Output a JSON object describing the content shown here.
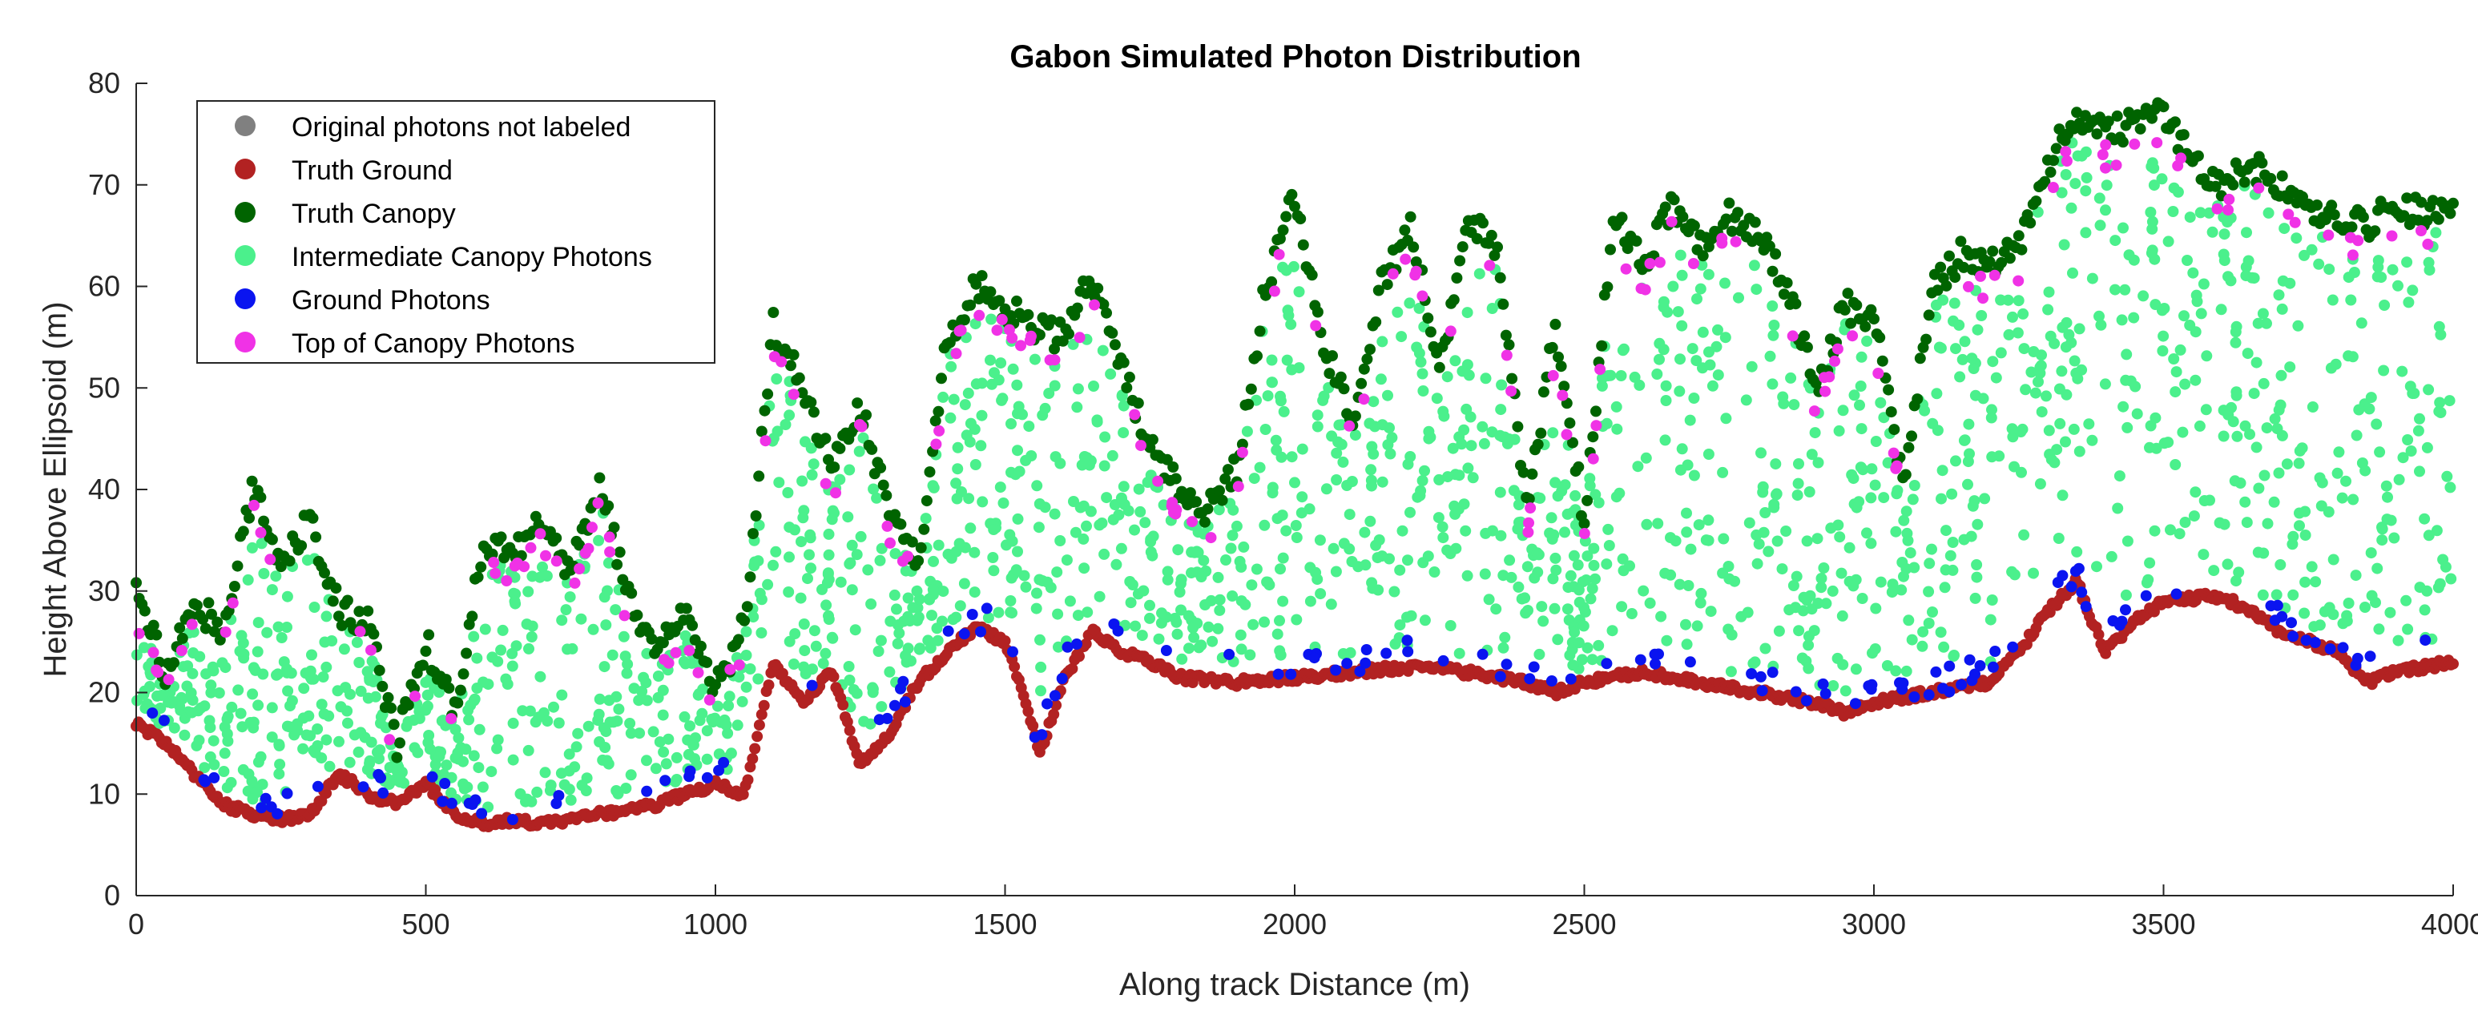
{
  "chart_data": {
    "type": "scatter",
    "title": "Gabon Simulated Photon Distribution",
    "xlabel": "Along track Distance (m)",
    "ylabel": "Height Above Ellipsoid (m)",
    "xlim": [
      0,
      4000
    ],
    "ylim": [
      0,
      80
    ],
    "xticks": [
      0,
      500,
      1000,
      1500,
      2000,
      2500,
      3000,
      3500,
      4000
    ],
    "yticks": [
      0,
      10,
      20,
      30,
      40,
      50,
      60,
      70,
      80
    ],
    "grid": false,
    "legend_location": "top-left",
    "legend": [
      {
        "label": "Original photons not labeled",
        "color": "#808080"
      },
      {
        "label": "Truth Ground",
        "color": "#b22222"
      },
      {
        "label": "Truth Canopy",
        "color": "#006400"
      },
      {
        "label": "Intermediate Canopy Photons",
        "color": "#4bf08c"
      },
      {
        "label": "Ground Photons",
        "color": "#0a14f0"
      },
      {
        "label": "Top of Canopy Photons",
        "color": "#f032e6"
      }
    ],
    "ground_profile": {
      "x": [
        0,
        50,
        100,
        150,
        200,
        250,
        300,
        350,
        400,
        450,
        500,
        550,
        600,
        650,
        700,
        750,
        800,
        850,
        900,
        950,
        1000,
        1050,
        1100,
        1150,
        1200,
        1250,
        1300,
        1350,
        1400,
        1450,
        1500,
        1530,
        1560,
        1600,
        1650,
        1700,
        1750,
        1800,
        1900,
        2000,
        2100,
        2200,
        2300,
        2400,
        2450,
        2500,
        2600,
        2700,
        2800,
        2900,
        2950,
        3000,
        3100,
        3200,
        3250,
        3300,
        3350,
        3370,
        3400,
        3450,
        3500,
        3600,
        3650,
        3700,
        3750,
        3800,
        3850,
        3900,
        4000
      ],
      "y": [
        17,
        15,
        12,
        9,
        8,
        7.5,
        8,
        12,
        10,
        9,
        11,
        8,
        7,
        7.5,
        7,
        7.5,
        8,
        8.5,
        9,
        10,
        11,
        10,
        23,
        19,
        22,
        13,
        16,
        21,
        24,
        26.5,
        25,
        20,
        14,
        21,
        26,
        24,
        23,
        21.5,
        21,
        21.5,
        22,
        22.5,
        22,
        21,
        20,
        21,
        22,
        21,
        20,
        19,
        18,
        19,
        20,
        21,
        24,
        28,
        31,
        28,
        24,
        27,
        29,
        29.5,
        28,
        26,
        25,
        24,
        21,
        22,
        23
      ]
    },
    "canopy_top_profile": {
      "x": [
        0,
        50,
        100,
        150,
        200,
        250,
        300,
        350,
        400,
        450,
        500,
        550,
        600,
        650,
        700,
        750,
        800,
        850,
        900,
        950,
        1000,
        1050,
        1100,
        1150,
        1200,
        1250,
        1300,
        1350,
        1400,
        1450,
        1500,
        1550,
        1600,
        1650,
        1700,
        1750,
        1800,
        1850,
        1900,
        1950,
        2000,
        2050,
        2100,
        2150,
        2200,
        2250,
        2300,
        2350,
        2400,
        2450,
        2500,
        2550,
        2600,
        2650,
        2700,
        2750,
        2800,
        2850,
        2900,
        2950,
        3000,
        3050,
        3100,
        3150,
        3200,
        3250,
        3300,
        3350,
        3400,
        3450,
        3500,
        3550,
        3600,
        3650,
        3700,
        3750,
        3800,
        3850,
        3900,
        3950,
        4000
      ],
      "y": [
        30,
        22,
        29,
        26,
        40,
        33,
        37,
        28,
        27,
        15,
        25,
        18,
        35,
        34,
        37,
        32,
        41,
        29,
        24,
        28,
        20,
        27,
        56,
        50,
        42,
        48,
        38,
        33,
        55,
        60,
        58,
        56,
        55,
        61,
        53,
        44,
        40,
        38,
        42,
        60,
        69,
        54,
        47,
        60,
        66,
        52,
        67,
        64,
        38,
        56,
        37,
        67,
        62,
        68,
        64,
        67,
        65,
        60,
        50,
        58,
        57,
        40,
        60,
        63,
        62,
        64,
        72,
        77,
        75,
        76,
        77,
        72,
        70,
        72,
        70,
        68,
        67,
        66,
        68,
        67,
        67
      ]
    }
  }
}
